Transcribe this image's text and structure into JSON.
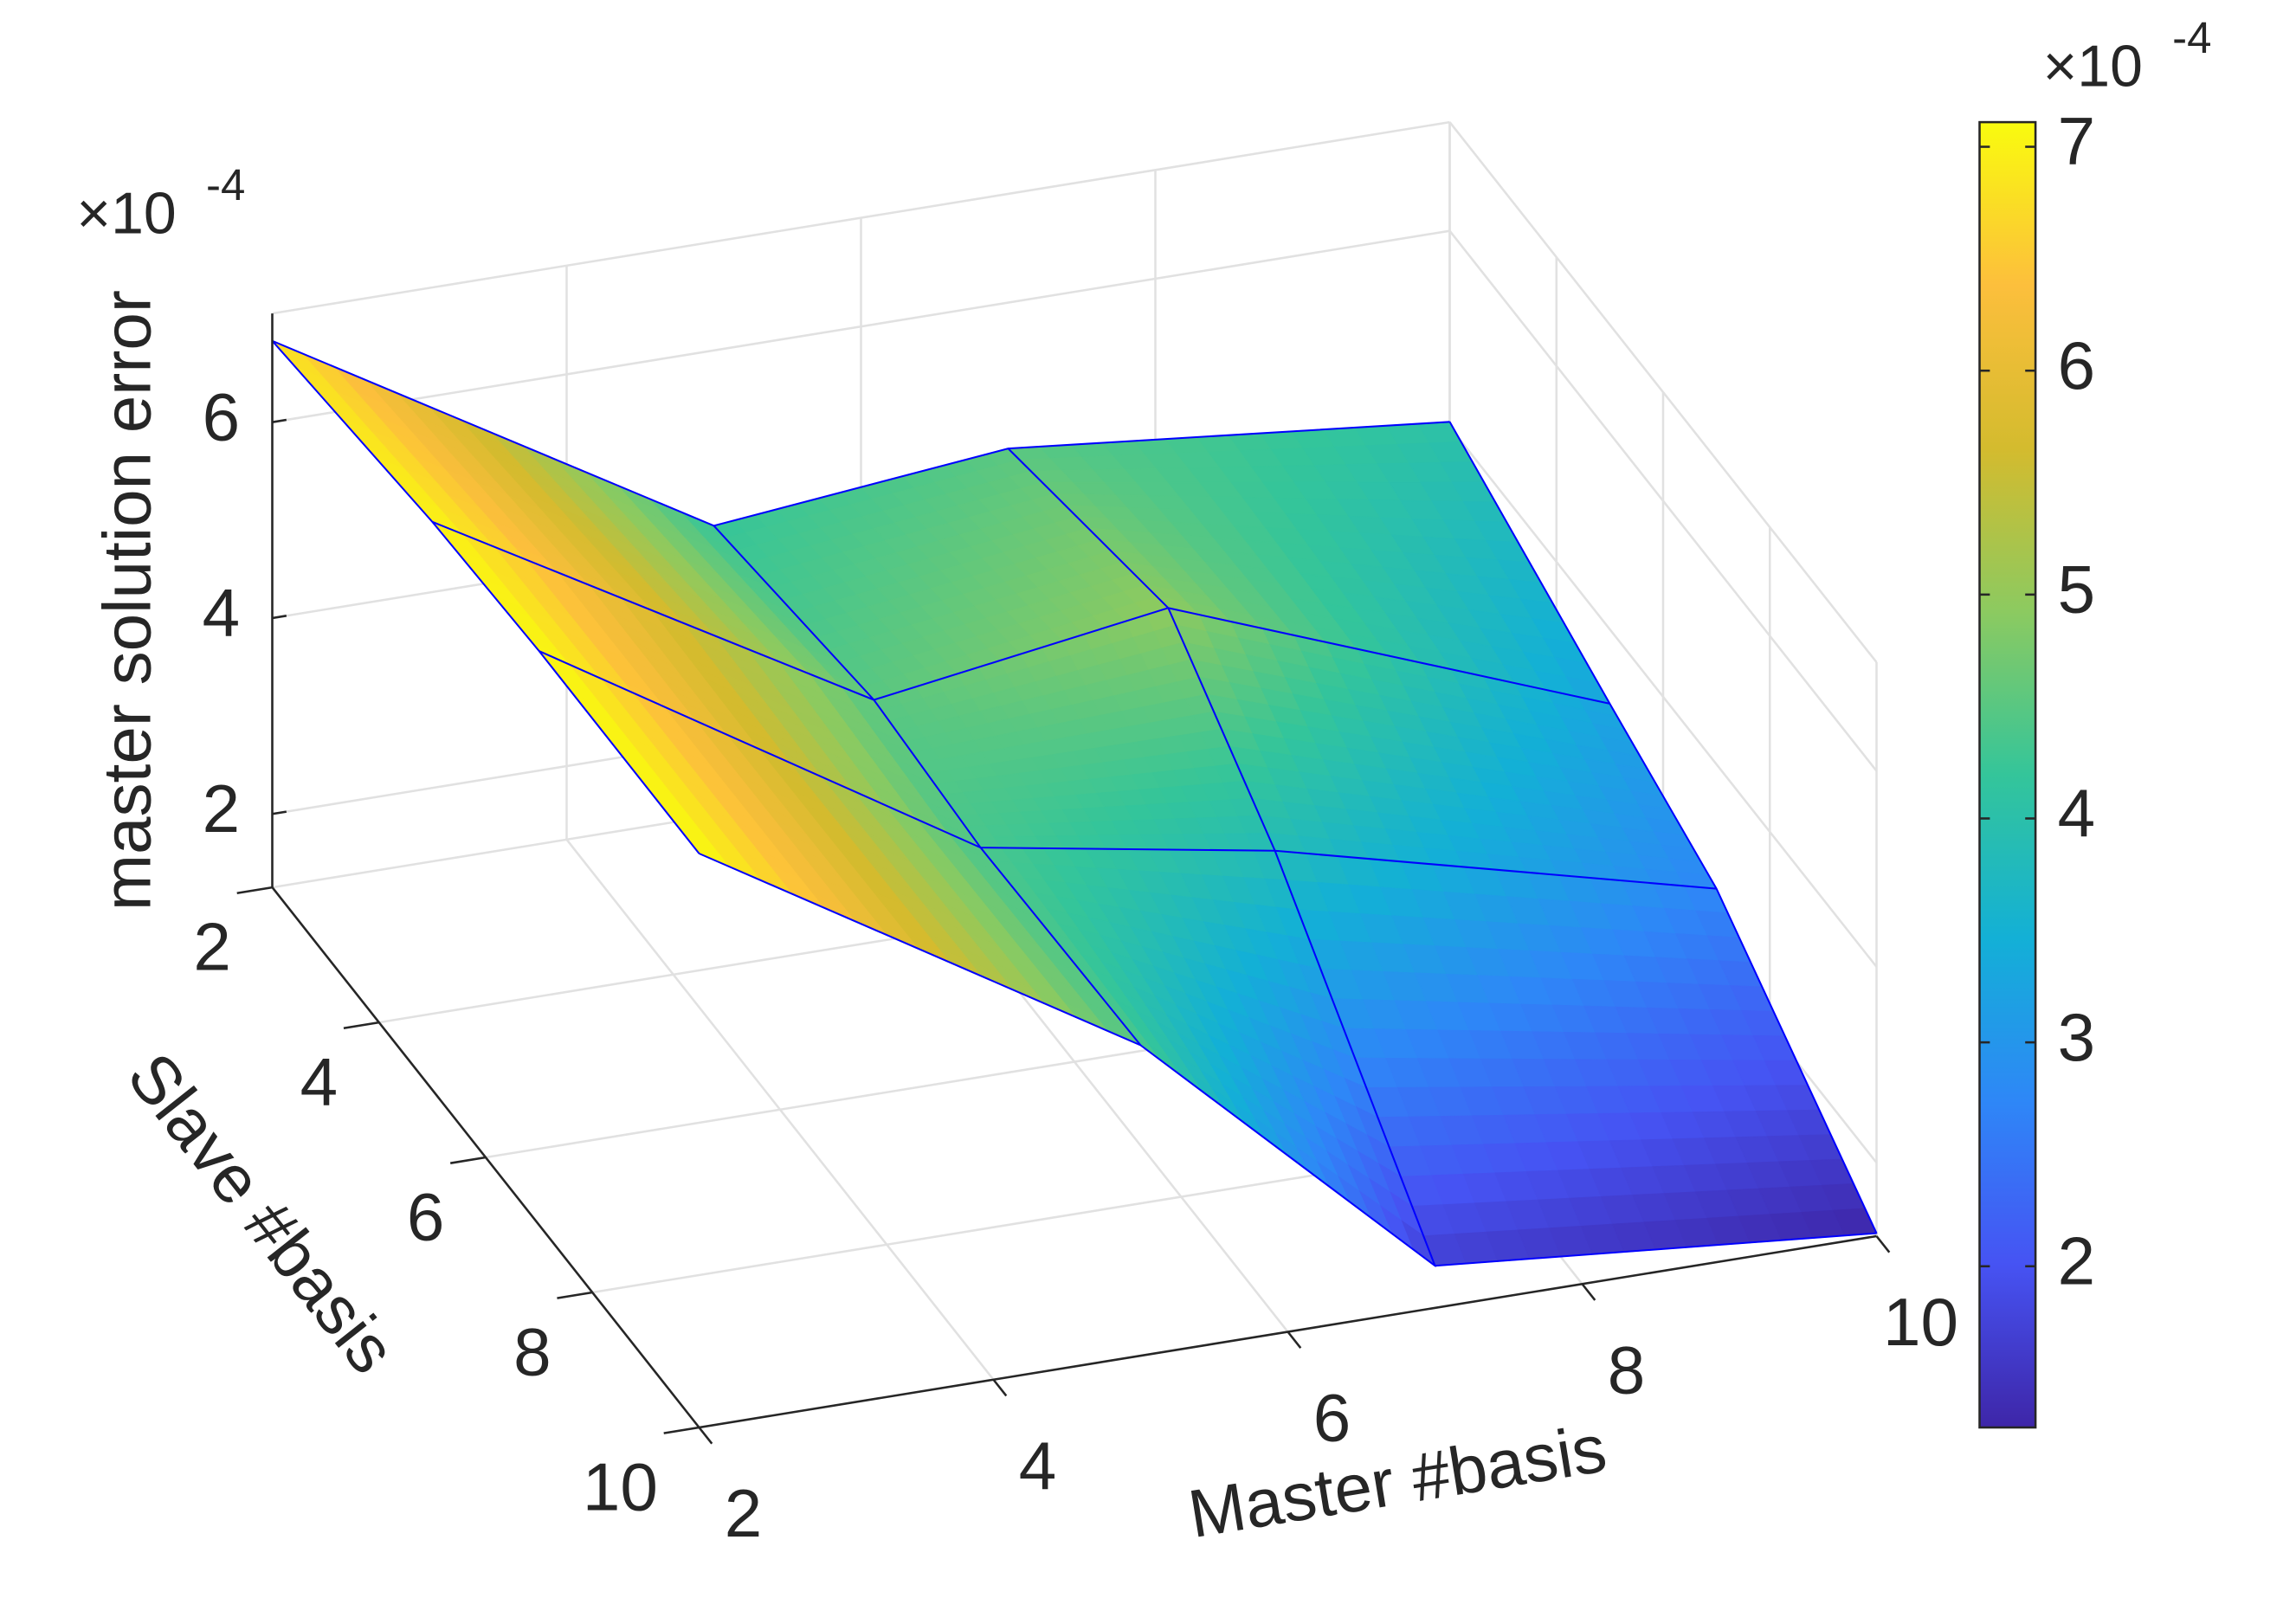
{
  "chart_data": {
    "type": "surface",
    "xlabel": "Master #basis",
    "ylabel": "Slave #basis",
    "zlabel": "master solution error",
    "x": [
      2,
      5,
      7,
      10
    ],
    "y": [
      2,
      5,
      7,
      10
    ],
    "z": [
      [
        0.000683,
        0.000421,
        0.000451,
        0.000405
      ],
      [
        0.000705,
        0.00045,
        0.000495,
        0.000324
      ],
      [
        0.000711,
        0.000437,
        0.000385,
        0.000273
      ],
      [
        0.000711,
        0.000442,
        0.000168,
        0.000128
      ]
    ],
    "xlim": [
      2,
      10
    ],
    "ylim": [
      2,
      10
    ],
    "zlim": [
      0.000125,
      0.000711
    ],
    "xticks": [
      2,
      4,
      6,
      8,
      10
    ],
    "yticks": [
      2,
      4,
      6,
      8,
      10
    ],
    "zticks": [
      {
        "value": 0.0002,
        "label": "2"
      },
      {
        "value": 0.0004,
        "label": "4"
      },
      {
        "value": 0.0006,
        "label": "6"
      }
    ],
    "zmultiplier": {
      "base": "×10",
      "exponent": "-4"
    },
    "grid": true,
    "colormap": "parula",
    "edge_color": "#0000ff",
    "colorbar": {
      "clim": [
        0.000128,
        0.000711
      ],
      "ticks": [
        {
          "value": 0.0002,
          "label": "2"
        },
        {
          "value": 0.0003,
          "label": "3"
        },
        {
          "value": 0.0004,
          "label": "4"
        },
        {
          "value": 0.0005,
          "label": "5"
        },
        {
          "value": 0.0006,
          "label": "6"
        },
        {
          "value": 0.0007,
          "label": "7"
        }
      ],
      "multiplier": {
        "base": "×10",
        "exponent": "-4"
      }
    }
  }
}
